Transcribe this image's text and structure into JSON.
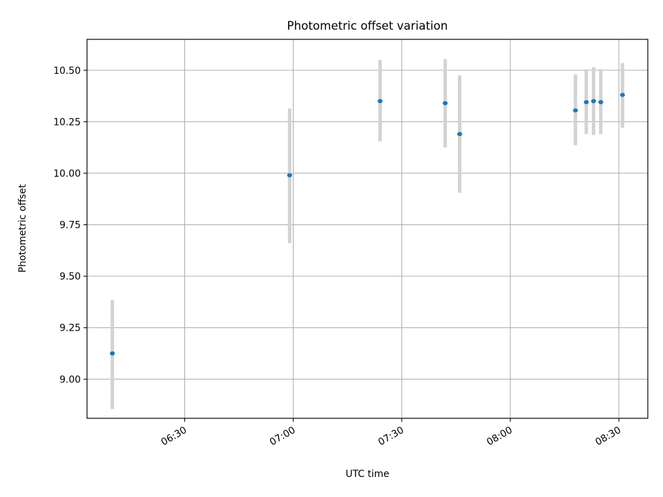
{
  "colors": {
    "point": "#1f77b4",
    "errorbar": "#d3d3d3",
    "grid": "#b0b0b0",
    "axes": "#000000",
    "background": "#ffffff"
  },
  "chart_data": {
    "type": "scatter",
    "title": "Photometric offset variation",
    "xlabel": "UTC time",
    "ylabel": "Photometric offset",
    "grid": true,
    "x_axis_type": "time",
    "xlim": [
      "06:03",
      "08:38"
    ],
    "ylim": [
      8.81,
      10.65
    ],
    "x_ticks": [
      "06:30",
      "07:00",
      "07:30",
      "08:00",
      "08:30"
    ],
    "y_ticks": [
      "9.00",
      "9.25",
      "9.50",
      "9.75",
      "10.00",
      "10.25",
      "10.50"
    ],
    "points": [
      {
        "x": "06:10",
        "y": 9.125,
        "yerr_low": 8.855,
        "yerr_high": 9.385
      },
      {
        "x": "06:59",
        "y": 9.99,
        "yerr_low": 9.66,
        "yerr_high": 10.315
      },
      {
        "x": "07:24",
        "y": 10.35,
        "yerr_low": 10.155,
        "yerr_high": 10.55
      },
      {
        "x": "07:42",
        "y": 10.34,
        "yerr_low": 10.125,
        "yerr_high": 10.555
      },
      {
        "x": "07:46",
        "y": 10.19,
        "yerr_low": 9.905,
        "yerr_high": 10.475
      },
      {
        "x": "08:18",
        "y": 10.305,
        "yerr_low": 10.135,
        "yerr_high": 10.48
      },
      {
        "x": "08:21",
        "y": 10.345,
        "yerr_low": 10.19,
        "yerr_high": 10.505
      },
      {
        "x": "08:23",
        "y": 10.35,
        "yerr_low": 10.185,
        "yerr_high": 10.515
      },
      {
        "x": "08:25",
        "y": 10.345,
        "yerr_low": 10.19,
        "yerr_high": 10.505
      },
      {
        "x": "08:31",
        "y": 10.38,
        "yerr_low": 10.22,
        "yerr_high": 10.535
      }
    ]
  }
}
